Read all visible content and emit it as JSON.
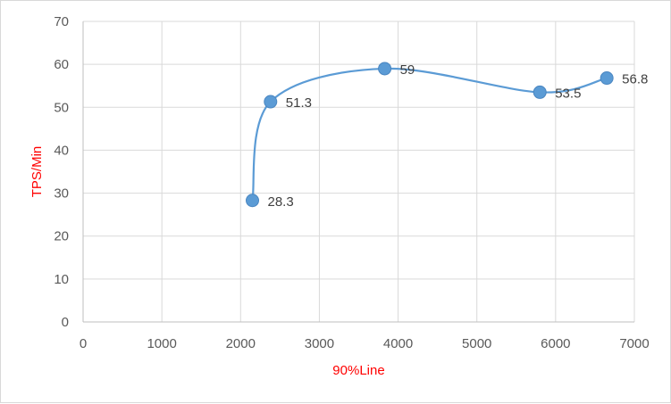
{
  "chart_data": {
    "type": "scatter",
    "xlabel": "90%Line",
    "ylabel": "TPS/Min",
    "xlim": [
      0,
      7000
    ],
    "ylim": [
      0,
      70
    ],
    "xticks": [
      0,
      1000,
      2000,
      3000,
      4000,
      5000,
      6000,
      7000
    ],
    "yticks": [
      0,
      10,
      20,
      30,
      40,
      50,
      60,
      70
    ],
    "grid": true,
    "smooth_line": true,
    "series": [
      {
        "points": [
          {
            "x": 2150,
            "y": 28.3,
            "label": "28.3"
          },
          {
            "x": 2380,
            "y": 51.3,
            "label": "51.3"
          },
          {
            "x": 3830,
            "y": 59,
            "label": "59"
          },
          {
            "x": 5800,
            "y": 53.5,
            "label": "53.5"
          },
          {
            "x": 6650,
            "y": 56.8,
            "label": "56.8"
          }
        ]
      }
    ],
    "colors": {
      "series": "#5b9bd5",
      "axis_title": "#ff0000",
      "grid": "#d9d9d9",
      "tick_text": "#595959",
      "label_text": "#404040"
    }
  }
}
